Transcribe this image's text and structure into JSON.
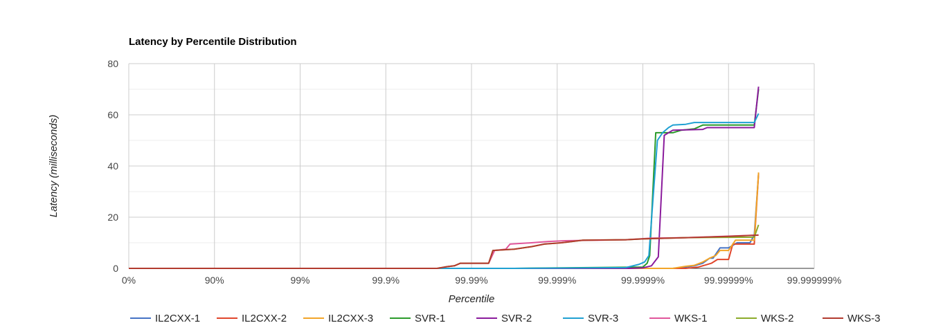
{
  "chart_data": {
    "type": "line",
    "title": "Latency by Percentile Distribution",
    "xlabel": "Percentile",
    "ylabel": "Latency (milliseconds)",
    "x_scale": "log-percentile",
    "x_ticks": [
      "0%",
      "90%",
      "99%",
      "99.9%",
      "99.99%",
      "99.999%",
      "99.9999%",
      "99.99999%",
      "99.999999%"
    ],
    "y_ticks": [
      0,
      20,
      40,
      60,
      80
    ],
    "ylim": [
      0,
      80
    ],
    "grid": true,
    "legend_position": "bottom",
    "series": [
      {
        "name": "IL2CXX-1",
        "color": "#4472c4",
        "points": [
          [
            0,
            0
          ],
          [
            6.1,
            0
          ],
          [
            6.35,
            0
          ],
          [
            6.5,
            0.5
          ],
          [
            6.6,
            1
          ],
          [
            6.7,
            2
          ],
          [
            6.78,
            4
          ],
          [
            6.82,
            4
          ],
          [
            6.9,
            8
          ],
          [
            7.0,
            8
          ],
          [
            7.1,
            10
          ],
          [
            7.25,
            10
          ],
          [
            7.3,
            13
          ],
          [
            7.35,
            37
          ]
        ]
      },
      {
        "name": "IL2CXX-2",
        "color": "#e0452b",
        "points": [
          [
            0,
            0
          ],
          [
            6.1,
            0
          ],
          [
            6.5,
            0
          ],
          [
            6.65,
            0.5
          ],
          [
            6.75,
            1.5
          ],
          [
            6.8,
            2
          ],
          [
            6.87,
            3.5
          ],
          [
            7.0,
            3.5
          ],
          [
            7.05,
            9.5
          ],
          [
            7.3,
            9.5
          ],
          [
            7.35,
            37
          ]
        ]
      },
      {
        "name": "IL2CXX-3",
        "color": "#f2a428",
        "points": [
          [
            0,
            0
          ],
          [
            6.1,
            0
          ],
          [
            6.35,
            0
          ],
          [
            6.5,
            0.8
          ],
          [
            6.6,
            1.2
          ],
          [
            6.7,
            2.5
          ],
          [
            6.78,
            4
          ],
          [
            6.85,
            5
          ],
          [
            6.9,
            7
          ],
          [
            7.0,
            7
          ],
          [
            7.08,
            11
          ],
          [
            7.3,
            11
          ],
          [
            7.35,
            37.5
          ]
        ]
      },
      {
        "name": "SVR-1",
        "color": "#2a9a2a",
        "points": [
          [
            0,
            0
          ],
          [
            4.5,
            0
          ],
          [
            6.0,
            0.5
          ],
          [
            6.05,
            2
          ],
          [
            6.08,
            5
          ],
          [
            6.15,
            53
          ],
          [
            6.25,
            53
          ],
          [
            6.35,
            53
          ],
          [
            6.45,
            54
          ],
          [
            6.6,
            54.5
          ],
          [
            6.7,
            56
          ],
          [
            7.3,
            56
          ],
          [
            7.35,
            70
          ]
        ]
      },
      {
        "name": "SVR-2",
        "color": "#8a1a9c",
        "points": [
          [
            0,
            0
          ],
          [
            4.5,
            0
          ],
          [
            5.85,
            0
          ],
          [
            6.0,
            0.2
          ],
          [
            6.1,
            1
          ],
          [
            6.18,
            4.5
          ],
          [
            6.25,
            52
          ],
          [
            6.35,
            54
          ],
          [
            6.7,
            54.3
          ],
          [
            6.75,
            55
          ],
          [
            7.3,
            55
          ],
          [
            7.35,
            71
          ]
        ]
      },
      {
        "name": "SVR-3",
        "color": "#1fa0d2",
        "points": [
          [
            0,
            0
          ],
          [
            4.5,
            0
          ],
          [
            5.8,
            0.3
          ],
          [
            5.95,
            1.5
          ],
          [
            6.02,
            2.5
          ],
          [
            6.07,
            5
          ],
          [
            6.12,
            28
          ],
          [
            6.17,
            50
          ],
          [
            6.23,
            53
          ],
          [
            6.3,
            55
          ],
          [
            6.35,
            56
          ],
          [
            6.5,
            56.3
          ],
          [
            6.6,
            57
          ],
          [
            7.3,
            57
          ],
          [
            7.35,
            60.5
          ]
        ]
      },
      {
        "name": "WKS-1",
        "color": "#e0559a",
        "points": [
          [
            0,
            0
          ],
          [
            3.6,
            0
          ],
          [
            3.7,
            0.6
          ],
          [
            3.8,
            1
          ],
          [
            3.87,
            2
          ],
          [
            4.2,
            2
          ],
          [
            4.27,
            7
          ],
          [
            4.4,
            7.5
          ],
          [
            4.45,
            9.5
          ],
          [
            4.7,
            10
          ],
          [
            4.9,
            10.5
          ],
          [
            5.1,
            10.8
          ],
          [
            5.5,
            11
          ],
          [
            5.8,
            11.2
          ],
          [
            6.1,
            11.8
          ],
          [
            6.5,
            12
          ],
          [
            7.35,
            13
          ]
        ]
      },
      {
        "name": "WKS-2",
        "color": "#8bab2a",
        "points": [
          [
            0,
            0
          ],
          [
            3.6,
            0
          ],
          [
            3.7,
            0.6
          ],
          [
            3.8,
            1
          ],
          [
            3.87,
            2
          ],
          [
            4.2,
            2
          ],
          [
            4.25,
            7
          ],
          [
            4.5,
            7.5
          ],
          [
            4.7,
            8.5
          ],
          [
            4.85,
            9.5
          ],
          [
            5.05,
            10
          ],
          [
            5.3,
            11
          ],
          [
            5.8,
            11.2
          ],
          [
            6.0,
            11.5
          ],
          [
            6.5,
            12
          ],
          [
            7.3,
            12.2
          ],
          [
            7.35,
            17
          ]
        ]
      },
      {
        "name": "WKS-3",
        "color": "#b23a2e",
        "points": [
          [
            0,
            0
          ],
          [
            3.6,
            0
          ],
          [
            3.7,
            0.6
          ],
          [
            3.8,
            1
          ],
          [
            3.87,
            2
          ],
          [
            4.2,
            2
          ],
          [
            4.25,
            7
          ],
          [
            4.5,
            7.5
          ],
          [
            4.7,
            8.5
          ],
          [
            4.85,
            9.5
          ],
          [
            5.05,
            10
          ],
          [
            5.3,
            11
          ],
          [
            5.8,
            11.2
          ],
          [
            6.0,
            11.5
          ],
          [
            6.5,
            12
          ],
          [
            7.0,
            12.5
          ],
          [
            7.35,
            13
          ]
        ]
      }
    ]
  }
}
